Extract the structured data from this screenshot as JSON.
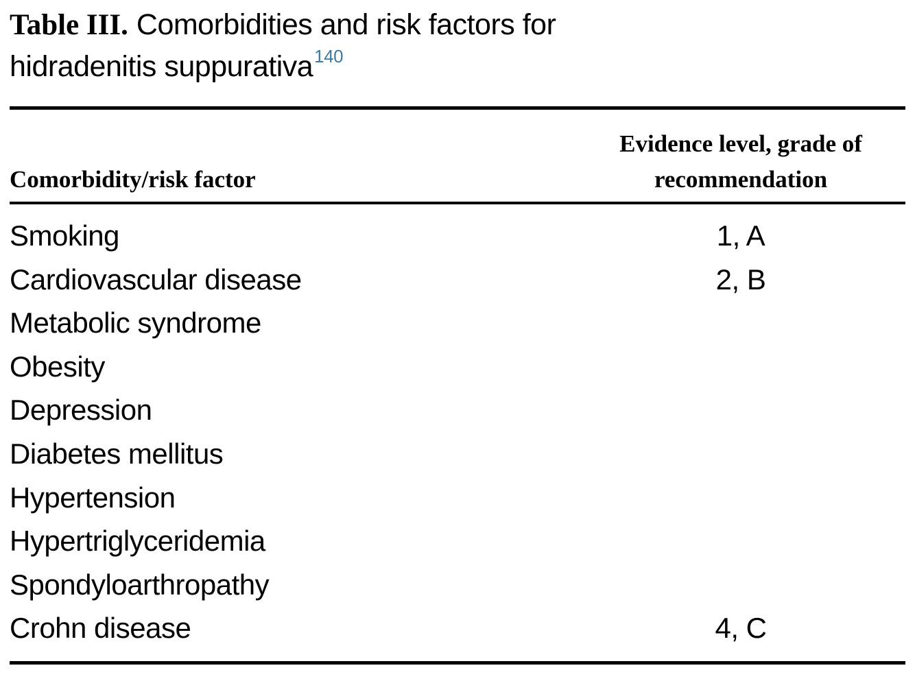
{
  "title": {
    "label": "Table III.",
    "line1": "Comorbidities and risk factors for",
    "line2": "hidradenitis suppurativa",
    "reference": "140"
  },
  "colors": {
    "text": "#000000",
    "rule": "#000000",
    "reference_accent": "#3e79a4"
  },
  "table": {
    "columns": [
      {
        "label": "Comorbidity/risk factor"
      },
      {
        "label": "Evidence level, grade of recommendation"
      }
    ],
    "rows": [
      {
        "factor": "Smoking",
        "evidence": "1, A"
      },
      {
        "factor": "Cardiovascular disease",
        "evidence": "2, B"
      },
      {
        "factor": "Metabolic syndrome",
        "evidence": ""
      },
      {
        "factor": "Obesity",
        "evidence": ""
      },
      {
        "factor": "Depression",
        "evidence": ""
      },
      {
        "factor": "Diabetes mellitus",
        "evidence": ""
      },
      {
        "factor": "Hypertension",
        "evidence": ""
      },
      {
        "factor": "Hypertriglyceridemia",
        "evidence": ""
      },
      {
        "factor": "Spondyloarthropathy",
        "evidence": ""
      },
      {
        "factor": "Crohn disease",
        "evidence": "4, C"
      }
    ]
  }
}
